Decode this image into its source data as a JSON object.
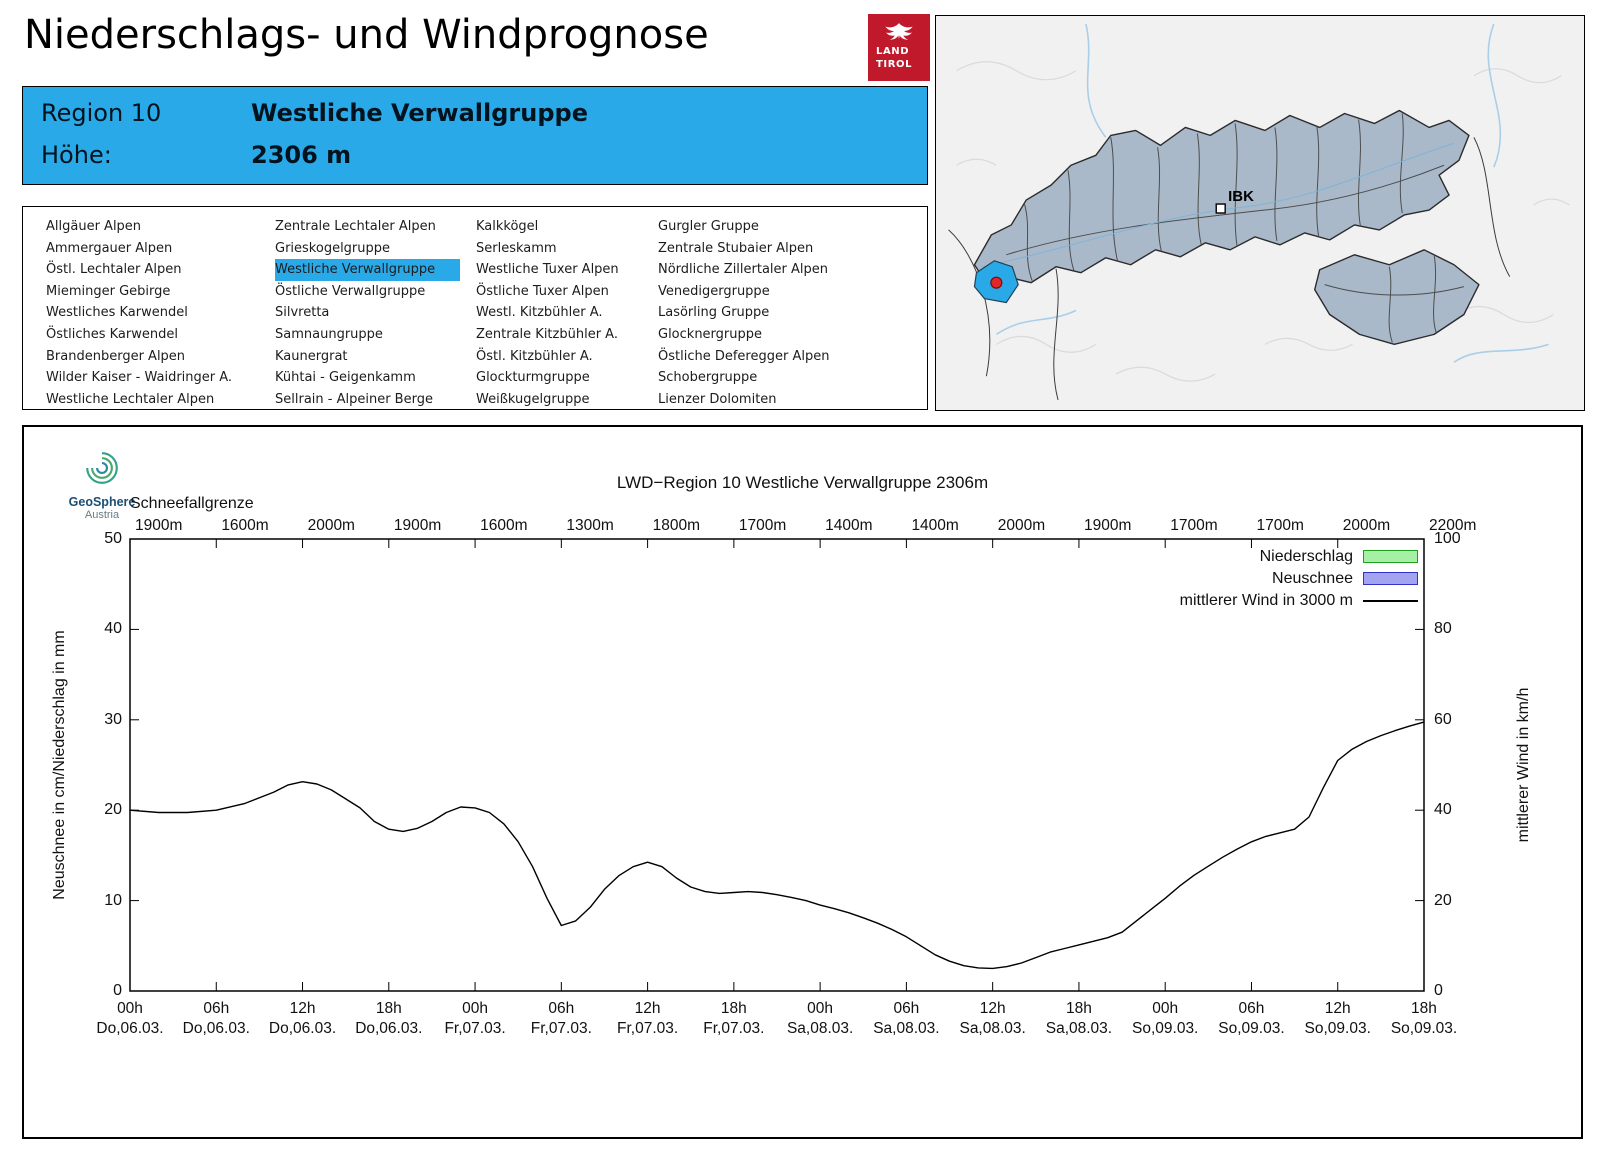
{
  "header": {
    "title": "Niederschlags- und Windprognose",
    "logo": {
      "line1": "LAND",
      "line2": "TIROL"
    }
  },
  "region_info": {
    "region_label": "Region 10",
    "region_name": "Westliche Verwallgruppe",
    "altitude_label": "Höhe:",
    "altitude_value": "2306 m",
    "accent_color": "#29a9e8"
  },
  "region_list": {
    "selected": "Westliche Verwallgruppe",
    "columns": [
      [
        "Allgäuer Alpen",
        "Ammergauer Alpen",
        "Östl. Lechtaler Alpen",
        "Mieminger Gebirge",
        "Westliches Karwendel",
        "Östliches Karwendel",
        "Brandenberger Alpen",
        "Wilder Kaiser - Waidringer A.",
        "Westliche Lechtaler Alpen"
      ],
      [
        "Zentrale Lechtaler Alpen",
        "Grieskogelgruppe",
        "Westliche Verwallgruppe",
        "Östliche Verwallgruppe",
        "Silvretta",
        "Samnaungruppe",
        "Kaunergrat",
        "Kühtai - Geigenkamm",
        "Sellrain - Alpeiner Berge"
      ],
      [
        "Kalkkögel",
        "Serleskamm",
        "Westliche Tuxer Alpen",
        "Östliche Tuxer Alpen",
        "Westl. Kitzbühler A.",
        "Zentrale Kitzbühler A.",
        "Östl. Kitzbühler A.",
        "Glockturmgruppe",
        "Weißkugelgruppe"
      ],
      [
        "Gurgler Gruppe",
        "Zentrale Stubaier Alpen",
        "Nördliche Zillertaler Alpen",
        "Venedigergruppe",
        "Lasörling Gruppe",
        "Glocknergruppe",
        "Östliche Deferegger Alpen",
        "Schobergruppe",
        "Lienzer Dolomiten"
      ]
    ]
  },
  "map": {
    "city_label": "IBK",
    "highlight_color": "#29a9e8",
    "marker_color": "#e02828",
    "region_fill": "#a9b9c9"
  },
  "chart_data": {
    "type": "line",
    "title": "LWD−Region 10 Westliche Verwallgruppe 2306m",
    "watermark": {
      "brand": "GeoSphere",
      "sub": "Austria"
    },
    "snowline": {
      "label": "Schneefallgrenze",
      "values": [
        "1900m",
        "1600m",
        "2000m",
        "1900m",
        "1600m",
        "1300m",
        "1800m",
        "1700m",
        "1400m",
        "1400m",
        "2000m",
        "1900m",
        "1700m",
        "1700m",
        "2000m",
        "2200m"
      ]
    },
    "ylabel_left": "Neuschnee in cm/Niederschlag in mm",
    "ylabel_right": "mittlerer Wind in km/h",
    "ylim_left": [
      0,
      50
    ],
    "ylim_right": [
      0,
      100
    ],
    "y_ticks_left": [
      0,
      10,
      20,
      30,
      40,
      50
    ],
    "y_ticks_right": [
      0,
      20,
      40,
      60,
      80,
      100
    ],
    "x_domain_hours": [
      0,
      90
    ],
    "x_tick_step_hours": 6,
    "x_ticks": [
      {
        "time": "00h",
        "date": "Do,06.03."
      },
      {
        "time": "06h",
        "date": "Do,06.03."
      },
      {
        "time": "12h",
        "date": "Do,06.03."
      },
      {
        "time": "18h",
        "date": "Do,06.03."
      },
      {
        "time": "00h",
        "date": "Fr,07.03."
      },
      {
        "time": "06h",
        "date": "Fr,07.03."
      },
      {
        "time": "12h",
        "date": "Fr,07.03."
      },
      {
        "time": "18h",
        "date": "Fr,07.03."
      },
      {
        "time": "00h",
        "date": "Sa,08.03."
      },
      {
        "time": "06h",
        "date": "Sa,08.03."
      },
      {
        "time": "12h",
        "date": "Sa,08.03."
      },
      {
        "time": "18h",
        "date": "Sa,08.03."
      },
      {
        "time": "00h",
        "date": "So,09.03."
      },
      {
        "time": "06h",
        "date": "So,09.03."
      },
      {
        "time": "12h",
        "date": "So,09.03."
      },
      {
        "time": "18h",
        "date": "So,09.03."
      }
    ],
    "legend": [
      {
        "label": "Niederschlag",
        "type": "box",
        "fill": "#a6f0a6",
        "stroke": "#1f9e1f"
      },
      {
        "label": "Neuschnee",
        "type": "box",
        "fill": "#a3a3f0",
        "stroke": "#3232c8"
      },
      {
        "label": "mittlerer Wind in 3000 m",
        "type": "line",
        "stroke": "#000000"
      }
    ],
    "series": [
      {
        "name": "Niederschlag",
        "unit": "mm",
        "axis": "left",
        "values": []
      },
      {
        "name": "Neuschnee",
        "unit": "cm",
        "axis": "left",
        "values": []
      },
      {
        "name": "mittlerer Wind in 3000 m",
        "unit": "km/h",
        "axis": "right",
        "points": [
          [
            0,
            40
          ],
          [
            2,
            39.5
          ],
          [
            4,
            39.5
          ],
          [
            6,
            40
          ],
          [
            8,
            41.5
          ],
          [
            10,
            44
          ],
          [
            11,
            45.6
          ],
          [
            12,
            46.3
          ],
          [
            13,
            45.8
          ],
          [
            14,
            44.5
          ],
          [
            15,
            42.5
          ],
          [
            16,
            40.5
          ],
          [
            17,
            37.5
          ],
          [
            18,
            35.8
          ],
          [
            19,
            35.3
          ],
          [
            20,
            36
          ],
          [
            21,
            37.5
          ],
          [
            22,
            39.5
          ],
          [
            23,
            40.7
          ],
          [
            24,
            40.5
          ],
          [
            25,
            39.5
          ],
          [
            26,
            37
          ],
          [
            27,
            33
          ],
          [
            28,
            27.5
          ],
          [
            29,
            20.5
          ],
          [
            30,
            14.5
          ],
          [
            31,
            15.5
          ],
          [
            32,
            18.5
          ],
          [
            33,
            22.5
          ],
          [
            34,
            25.5
          ],
          [
            35,
            27.5
          ],
          [
            36,
            28.5
          ],
          [
            37,
            27.5
          ],
          [
            38,
            25
          ],
          [
            39,
            23
          ],
          [
            40,
            22
          ],
          [
            41,
            21.6
          ],
          [
            42,
            21.8
          ],
          [
            43,
            22
          ],
          [
            44,
            21.8
          ],
          [
            45,
            21.3
          ],
          [
            46,
            20.7
          ],
          [
            47,
            20
          ],
          [
            48,
            19
          ],
          [
            49,
            18.2
          ],
          [
            50,
            17.3
          ],
          [
            51,
            16.2
          ],
          [
            52,
            15
          ],
          [
            53,
            13.6
          ],
          [
            54,
            12
          ],
          [
            55,
            10
          ],
          [
            56,
            8
          ],
          [
            57,
            6.6
          ],
          [
            58,
            5.6
          ],
          [
            59,
            5.1
          ],
          [
            60,
            5
          ],
          [
            61,
            5.4
          ],
          [
            62,
            6.2
          ],
          [
            63,
            7.4
          ],
          [
            64,
            8.6
          ],
          [
            65,
            9.4
          ],
          [
            66,
            10.2
          ],
          [
            67,
            11
          ],
          [
            68,
            11.8
          ],
          [
            69,
            13
          ],
          [
            70,
            15.5
          ],
          [
            71,
            18
          ],
          [
            72,
            20.5
          ],
          [
            73,
            23.2
          ],
          [
            74,
            25.6
          ],
          [
            75,
            27.6
          ],
          [
            76,
            29.6
          ],
          [
            77,
            31.4
          ],
          [
            78,
            33
          ],
          [
            79,
            34.2
          ],
          [
            80,
            35
          ],
          [
            81,
            35.8
          ],
          [
            82,
            38.5
          ],
          [
            83,
            45
          ],
          [
            84,
            51
          ],
          [
            85,
            53.5
          ],
          [
            86,
            55.2
          ],
          [
            87,
            56.5
          ],
          [
            88,
            57.6
          ],
          [
            89,
            58.6
          ],
          [
            90,
            59.5
          ]
        ]
      }
    ]
  }
}
